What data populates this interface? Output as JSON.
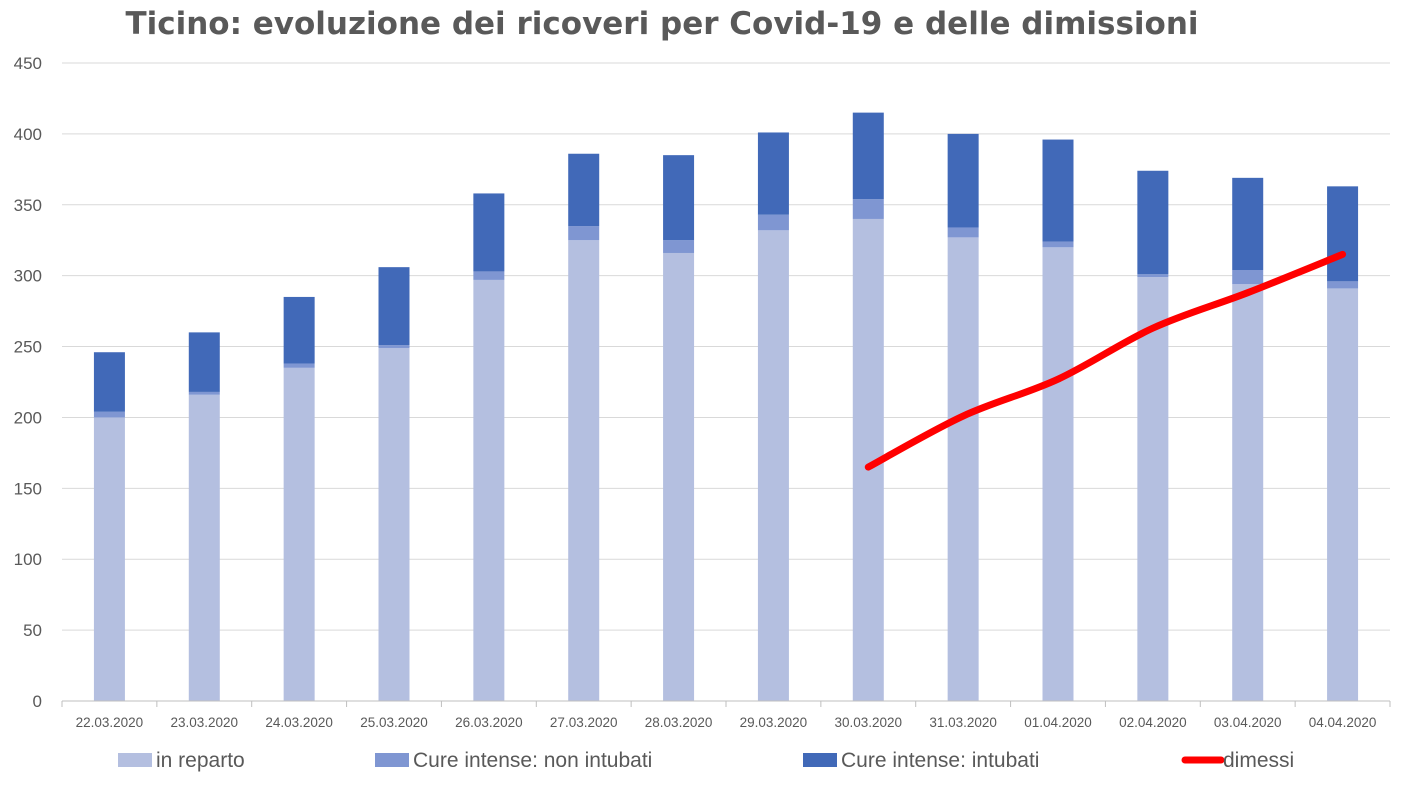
{
  "chart_data": {
    "type": "bar",
    "stacked": true,
    "title": "Ticino: evoluzione dei ricoveri per Covid-19 e delle dimissioni",
    "xlabel": "",
    "ylabel": "",
    "ylim": [
      0,
      450
    ],
    "yticks": [
      0,
      50,
      100,
      150,
      200,
      250,
      300,
      350,
      400,
      450
    ],
    "grid": true,
    "legend_position": "bottom",
    "categories": [
      "22.03.2020",
      "23.03.2020",
      "24.03.2020",
      "25.03.2020",
      "26.03.2020",
      "27.03.2020",
      "28.03.2020",
      "29.03.2020",
      "30.03.2020",
      "31.03.2020",
      "01.04.2020",
      "02.04.2020",
      "03.04.2020",
      "04.04.2020"
    ],
    "series": [
      {
        "name": "in reparto",
        "kind": "bar",
        "color": "#b4bfe0",
        "values": [
          200,
          216,
          235,
          249,
          297,
          325,
          316,
          332,
          340,
          327,
          320,
          299,
          294,
          291
        ]
      },
      {
        "name": "Cure intense: non intubati",
        "kind": "bar",
        "color": "#7f96d2",
        "values": [
          4,
          2,
          3,
          2,
          6,
          10,
          9,
          11,
          14,
          7,
          4,
          2,
          10,
          5
        ]
      },
      {
        "name": "Cure intense: intubati",
        "kind": "bar",
        "color": "#4169b8",
        "values": [
          42,
          42,
          47,
          55,
          55,
          51,
          60,
          58,
          61,
          66,
          72,
          73,
          65,
          67
        ]
      },
      {
        "name": "dimessi",
        "kind": "line",
        "color": "#ff0000",
        "values": [
          null,
          null,
          null,
          null,
          null,
          null,
          null,
          null,
          165,
          201,
          227,
          263,
          288,
          315
        ]
      }
    ]
  }
}
